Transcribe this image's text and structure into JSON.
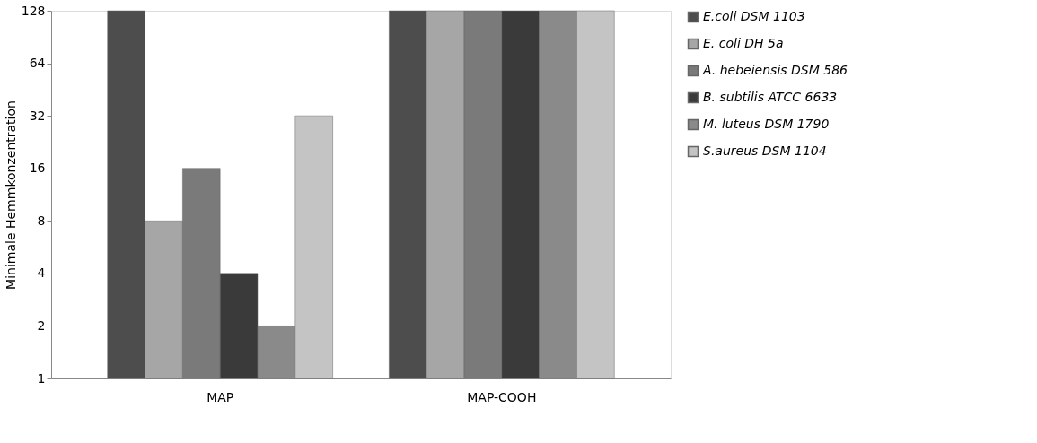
{
  "chart_data": {
    "type": "bar",
    "ylabel": "Minimale Hemmkonzentration",
    "categories": [
      "MAP",
      "MAP-COOH"
    ],
    "series": [
      {
        "name": "E.coli DSM 1103",
        "color": "#4d4d4d",
        "values": [
          128,
          128
        ]
      },
      {
        "name": "E. coli DH 5a",
        "color": "#a6a6a6",
        "values": [
          8,
          128
        ]
      },
      {
        "name": "A. hebeiensis DSM 586",
        "color": "#7a7a7a",
        "values": [
          16,
          128
        ]
      },
      {
        "name": "B. subtilis ATCC 6633",
        "color": "#3a3a3a",
        "values": [
          4,
          128
        ]
      },
      {
        "name": "M. luteus DSM 1790",
        "color": "#8a8a8a",
        "values": [
          2,
          128
        ]
      },
      {
        "name": "S.aureus DSM 1104",
        "color": "#c4c4c4",
        "values": [
          32,
          128
        ]
      }
    ],
    "log": "y",
    "ylim": [
      1,
      128
    ],
    "yticks": [
      1,
      2,
      4,
      8,
      16,
      32,
      64,
      128
    ],
    "grid": false,
    "legend": "right"
  }
}
